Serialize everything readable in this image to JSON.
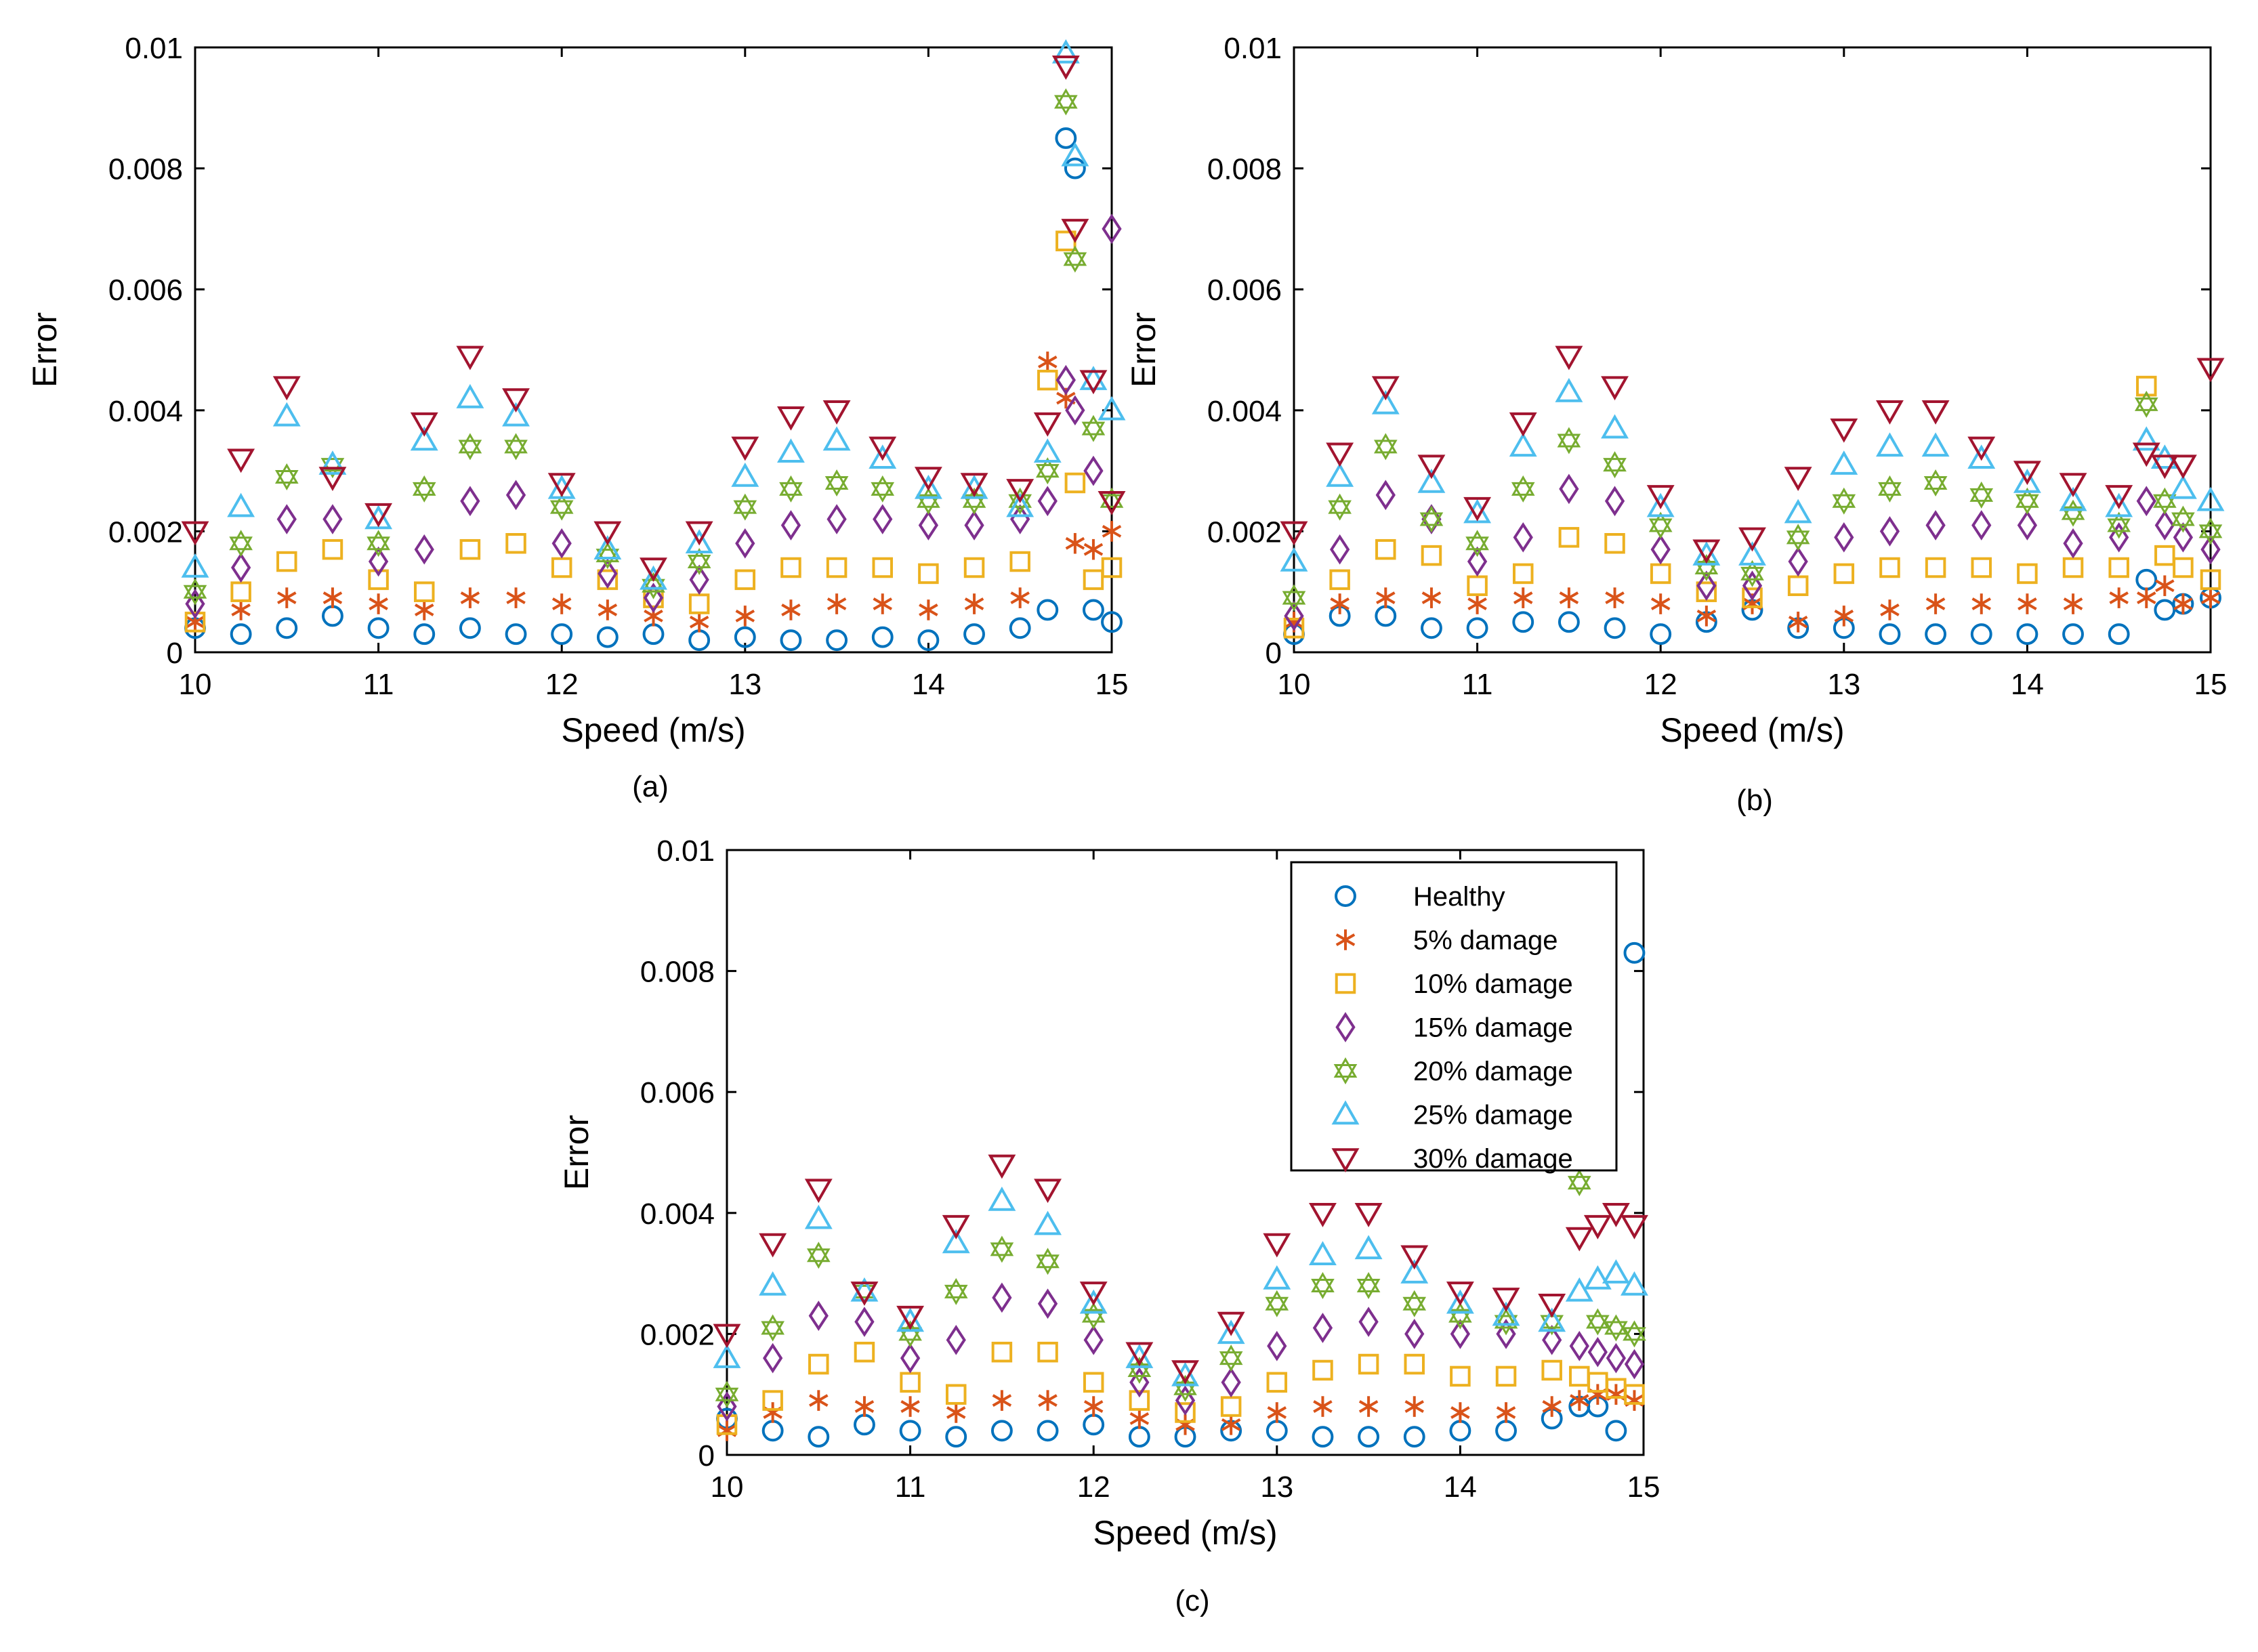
{
  "figure": {
    "legend_title": "",
    "series_styles": [
      {
        "name": "Healthy",
        "color": "#0072BD",
        "marker": "circle"
      },
      {
        "name": "5% damage",
        "color": "#D95319",
        "marker": "asterisk"
      },
      {
        "name": "10% damage",
        "color": "#EDB120",
        "marker": "square"
      },
      {
        "name": "15% damage",
        "color": "#7E2F8E",
        "marker": "diamond"
      },
      {
        "name": "20% damage",
        "color": "#77AC30",
        "marker": "hexagram"
      },
      {
        "name": "25% damage",
        "color": "#4DBEEE",
        "marker": "triangle-up"
      },
      {
        "name": "30% damage",
        "color": "#A2142F",
        "marker": "triangle-down"
      }
    ]
  },
  "chart_data": [
    {
      "id": "a",
      "type": "scatter",
      "caption": "(a)",
      "title": "",
      "xlabel": "Speed (m/s)",
      "ylabel": "Error",
      "xlim": [
        10,
        15
      ],
      "ylim": [
        0,
        0.01
      ],
      "xticks": [
        "10",
        "11",
        "12",
        "13",
        "14",
        "15"
      ],
      "yticks": [
        "0",
        "0.002",
        "0.004",
        "0.006",
        "0.008",
        "0.01"
      ],
      "legend": false,
      "x": [
        10,
        10.25,
        10.5,
        10.75,
        11,
        11.25,
        11.5,
        11.75,
        12,
        12.25,
        12.5,
        12.75,
        13,
        13.25,
        13.5,
        13.75,
        14,
        14.25,
        14.5,
        14.65,
        14.75,
        14.8,
        14.9,
        15
      ],
      "series": [
        {
          "name": "Healthy",
          "values": [
            0.0004,
            0.0003,
            0.0004,
            0.0006,
            0.0004,
            0.0003,
            0.0004,
            0.0003,
            0.0003,
            0.00025,
            0.0003,
            0.0002,
            0.00025,
            0.0002,
            0.0002,
            0.00025,
            0.0002,
            0.0003,
            0.0004,
            0.0007,
            0.0085,
            0.008,
            0.0007,
            0.0005
          ]
        },
        {
          "name": "5% damage",
          "values": [
            0.0005,
            0.0007,
            0.0009,
            0.0009,
            0.0008,
            0.0007,
            0.0009,
            0.0009,
            0.0008,
            0.0007,
            0.0006,
            0.0005,
            0.0006,
            0.0007,
            0.0008,
            0.0008,
            0.0007,
            0.0008,
            0.0009,
            0.0048,
            0.0042,
            0.0018,
            0.0017,
            0.002
          ]
        },
        {
          "name": "10% damage",
          "values": [
            0.0005,
            0.001,
            0.0015,
            0.0017,
            0.0012,
            0.001,
            0.0017,
            0.0018,
            0.0014,
            0.0012,
            0.0009,
            0.0008,
            0.0012,
            0.0014,
            0.0014,
            0.0014,
            0.0013,
            0.0014,
            0.0015,
            0.0045,
            0.0068,
            0.0028,
            0.0012,
            0.0014
          ]
        },
        {
          "name": "15% damage",
          "values": [
            0.0008,
            0.0014,
            0.0022,
            0.0022,
            0.0015,
            0.0017,
            0.0025,
            0.0026,
            0.0018,
            0.0013,
            0.0009,
            0.0012,
            0.0018,
            0.0021,
            0.0022,
            0.0022,
            0.0021,
            0.0021,
            0.0022,
            0.0025,
            0.0045,
            0.004,
            0.003,
            0.007
          ]
        },
        {
          "name": "20% damage",
          "values": [
            0.001,
            0.0018,
            0.0029,
            0.0031,
            0.0018,
            0.0027,
            0.0034,
            0.0034,
            0.0024,
            0.0016,
            0.0011,
            0.0015,
            0.0024,
            0.0027,
            0.0028,
            0.0027,
            0.0025,
            0.0025,
            0.0025,
            0.003,
            0.0091,
            0.0065,
            0.0037,
            0.0025
          ]
        },
        {
          "name": "25% damage",
          "values": [
            0.0014,
            0.0024,
            0.0039,
            0.0031,
            0.0022,
            0.0035,
            0.0042,
            0.0039,
            0.0027,
            0.0017,
            0.0012,
            0.0018,
            0.0029,
            0.0033,
            0.0035,
            0.0032,
            0.0027,
            0.0027,
            0.0024,
            0.0033,
            0.0099,
            0.0082,
            0.0045,
            0.004
          ]
        },
        {
          "name": "30% damage",
          "values": [
            0.002,
            0.0032,
            0.0044,
            0.0029,
            0.0023,
            0.0038,
            0.0049,
            0.0042,
            0.0028,
            0.002,
            0.0014,
            0.002,
            0.0034,
            0.0039,
            0.004,
            0.0034,
            0.0029,
            0.0028,
            0.0027,
            0.0038,
            0.0097,
            0.007,
            0.0045,
            0.0025
          ]
        }
      ]
    },
    {
      "id": "b",
      "type": "scatter",
      "caption": "(b)",
      "title": "",
      "xlabel": "Speed (m/s)",
      "ylabel": "Error",
      "xlim": [
        10,
        15
      ],
      "ylim": [
        0,
        0.01
      ],
      "xticks": [
        "10",
        "11",
        "12",
        "13",
        "14",
        "15"
      ],
      "yticks": [
        "0",
        "0.002",
        "0.004",
        "0.006",
        "0.008",
        "0.01"
      ],
      "legend": false,
      "x": [
        10,
        10.25,
        10.5,
        10.75,
        11,
        11.25,
        11.5,
        11.75,
        12,
        12.25,
        12.5,
        12.75,
        13,
        13.25,
        13.5,
        13.75,
        14,
        14.25,
        14.5,
        14.65,
        14.75,
        14.85,
        15
      ],
      "series": [
        {
          "name": "Healthy",
          "values": [
            0.0003,
            0.0006,
            0.0006,
            0.0004,
            0.0004,
            0.0005,
            0.0005,
            0.0004,
            0.0003,
            0.0005,
            0.0007,
            0.0004,
            0.0004,
            0.0003,
            0.0003,
            0.0003,
            0.0003,
            0.0003,
            0.0003,
            0.0012,
            0.0007,
            0.0008,
            0.0009
          ]
        },
        {
          "name": "5% damage",
          "values": [
            0.0005,
            0.0008,
            0.0009,
            0.0009,
            0.0008,
            0.0009,
            0.0009,
            0.0009,
            0.0008,
            0.0006,
            0.0008,
            0.0005,
            0.0006,
            0.0007,
            0.0008,
            0.0008,
            0.0008,
            0.0008,
            0.0009,
            0.0009,
            0.0011,
            0.0008,
            0.0009
          ]
        },
        {
          "name": "10% damage",
          "values": [
            0.0004,
            0.0012,
            0.0017,
            0.0016,
            0.0011,
            0.0013,
            0.0019,
            0.0018,
            0.0013,
            0.001,
            0.0009,
            0.0011,
            0.0013,
            0.0014,
            0.0014,
            0.0014,
            0.0013,
            0.0014,
            0.0014,
            0.0044,
            0.0016,
            0.0014,
            0.0012
          ]
        },
        {
          "name": "15% damage",
          "values": [
            0.0006,
            0.0017,
            0.0026,
            0.0022,
            0.0015,
            0.0019,
            0.0027,
            0.0025,
            0.0017,
            0.0011,
            0.0011,
            0.0015,
            0.0019,
            0.002,
            0.0021,
            0.0021,
            0.0021,
            0.0018,
            0.0019,
            0.0025,
            0.0021,
            0.0019,
            0.0017
          ]
        },
        {
          "name": "20% damage",
          "values": [
            0.0009,
            0.0024,
            0.0034,
            0.0022,
            0.0018,
            0.0027,
            0.0035,
            0.0031,
            0.0021,
            0.0014,
            0.0013,
            0.0019,
            0.0025,
            0.0027,
            0.0028,
            0.0026,
            0.0025,
            0.0023,
            0.0021,
            0.0041,
            0.0025,
            0.0022,
            0.002
          ]
        },
        {
          "name": "25% damage",
          "values": [
            0.0015,
            0.0029,
            0.0041,
            0.0028,
            0.0023,
            0.0034,
            0.0043,
            0.0037,
            0.0024,
            0.0016,
            0.0016,
            0.0023,
            0.0031,
            0.0034,
            0.0034,
            0.0032,
            0.0028,
            0.0025,
            0.0024,
            0.0035,
            0.0032,
            0.0027,
            0.0025
          ]
        },
        {
          "name": "30% damage",
          "values": [
            0.002,
            0.0033,
            0.0044,
            0.0031,
            0.0024,
            0.0038,
            0.0049,
            0.0044,
            0.0026,
            0.0017,
            0.0019,
            0.0029,
            0.0037,
            0.004,
            0.004,
            0.0034,
            0.003,
            0.0028,
            0.0026,
            0.0033,
            0.0031,
            0.0031,
            0.0047
          ]
        }
      ]
    },
    {
      "id": "c",
      "type": "scatter",
      "caption": "(c)",
      "title": "",
      "xlabel": "Speed (m/s)",
      "ylabel": "Error",
      "xlim": [
        10,
        15
      ],
      "ylim": [
        0,
        0.01
      ],
      "xticks": [
        "10",
        "11",
        "12",
        "13",
        "14",
        "15"
      ],
      "yticks": [
        "0",
        "0.002",
        "0.004",
        "0.006",
        "0.008",
        "0.01"
      ],
      "legend": true,
      "legend_location": "top-right",
      "x": [
        10,
        10.25,
        10.5,
        10.75,
        11,
        11.25,
        11.5,
        11.75,
        12,
        12.25,
        12.5,
        12.75,
        13,
        13.25,
        13.5,
        13.75,
        14,
        14.25,
        14.5,
        14.65,
        14.75,
        14.85,
        14.95
      ],
      "series": [
        {
          "name": "Healthy",
          "values": [
            0.0006,
            0.0004,
            0.0003,
            0.0005,
            0.0004,
            0.0003,
            0.0004,
            0.0004,
            0.0005,
            0.0003,
            0.0003,
            0.0004,
            0.0004,
            0.0003,
            0.0003,
            0.0003,
            0.0004,
            0.0004,
            0.0006,
            0.0008,
            0.0008,
            0.0004,
            0.0083
          ]
        },
        {
          "name": "5% damage",
          "values": [
            0.0004,
            0.0007,
            0.0009,
            0.0008,
            0.0008,
            0.0007,
            0.0009,
            0.0009,
            0.0008,
            0.0006,
            0.0005,
            0.0005,
            0.0007,
            0.0008,
            0.0008,
            0.0008,
            0.0007,
            0.0007,
            0.0008,
            0.0009,
            0.001,
            0.001,
            0.0009
          ]
        },
        {
          "name": "10% damage",
          "values": [
            0.0005,
            0.0009,
            0.0015,
            0.0017,
            0.0012,
            0.001,
            0.0017,
            0.0017,
            0.0012,
            0.0009,
            0.0007,
            0.0008,
            0.0012,
            0.0014,
            0.0015,
            0.0015,
            0.0013,
            0.0013,
            0.0014,
            0.0013,
            0.0012,
            0.0011,
            0.001
          ]
        },
        {
          "name": "15% damage",
          "values": [
            0.0008,
            0.0016,
            0.0023,
            0.0022,
            0.0016,
            0.0019,
            0.0026,
            0.0025,
            0.0019,
            0.0012,
            0.0009,
            0.0012,
            0.0018,
            0.0021,
            0.0022,
            0.002,
            0.002,
            0.002,
            0.0019,
            0.0018,
            0.0017,
            0.0016,
            0.0015
          ]
        },
        {
          "name": "20% damage",
          "values": [
            0.001,
            0.0021,
            0.0033,
            0.0027,
            0.002,
            0.0027,
            0.0034,
            0.0032,
            0.0023,
            0.0014,
            0.0011,
            0.0016,
            0.0025,
            0.0028,
            0.0028,
            0.0025,
            0.0023,
            0.0022,
            0.0022,
            0.0045,
            0.0022,
            0.0021,
            0.002
          ]
        },
        {
          "name": "25% damage",
          "values": [
            0.0016,
            0.0028,
            0.0039,
            0.0027,
            0.0022,
            0.0035,
            0.0042,
            0.0038,
            0.0025,
            0.0016,
            0.0013,
            0.002,
            0.0029,
            0.0033,
            0.0034,
            0.003,
            0.0025,
            0.0023,
            0.0022,
            0.0027,
            0.0029,
            0.003,
            0.0028
          ]
        },
        {
          "name": "30% damage",
          "values": [
            0.002,
            0.0035,
            0.0044,
            0.0027,
            0.0023,
            0.0038,
            0.0048,
            0.0044,
            0.0027,
            0.0017,
            0.0014,
            0.0022,
            0.0035,
            0.004,
            0.004,
            0.0033,
            0.0027,
            0.0026,
            0.0025,
            0.0036,
            0.0038,
            0.004,
            0.0038
          ]
        }
      ]
    }
  ]
}
